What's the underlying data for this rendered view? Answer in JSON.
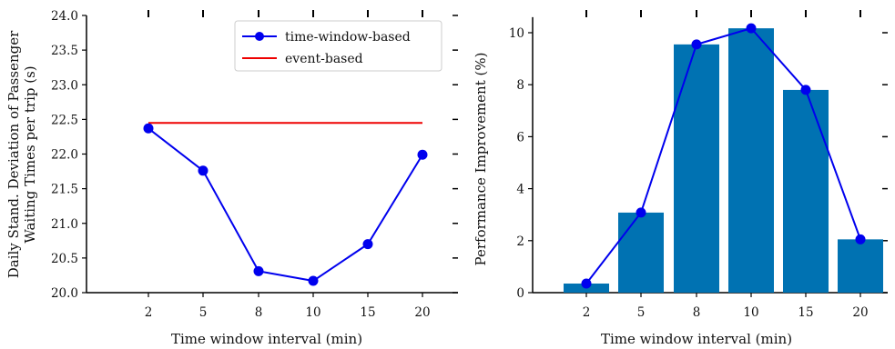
{
  "chart_data": [
    {
      "type": "line",
      "title": "",
      "xlabel": "Time window interval (min)",
      "ylabel_lines": [
        "Daily Stand. Deviation of Passenger",
        "Waiting Times per trip (s)"
      ],
      "categories": [
        "2",
        "5",
        "8",
        "10",
        "15",
        "20"
      ],
      "ylim": [
        20.0,
        24.0
      ],
      "yticks": [
        "20.0",
        "20.5",
        "21.0",
        "21.5",
        "22.0",
        "22.5",
        "23.0",
        "23.5",
        "24.0"
      ],
      "legend_position": "top-right",
      "series": [
        {
          "name": "time-window-based",
          "color": "#0000ee",
          "marker": "circle",
          "values": [
            22.37,
            21.76,
            20.31,
            20.17,
            20.7,
            21.99
          ]
        },
        {
          "name": "event-based",
          "color": "#ee0000",
          "marker": "none",
          "values": [
            22.45,
            22.45,
            22.45,
            22.45,
            22.45,
            22.45
          ]
        }
      ]
    },
    {
      "type": "bar",
      "title": "",
      "xlabel": "Time window interval (min)",
      "ylabel": "Performance Improvement (%)",
      "categories": [
        "2",
        "5",
        "8",
        "10",
        "15",
        "20"
      ],
      "ylim": [
        0,
        10.6
      ],
      "yticks": [
        "0",
        "2",
        "4",
        "6",
        "8",
        "10"
      ],
      "bar_color": "#0072b2",
      "line_color": "#0000ee",
      "values": [
        0.35,
        3.08,
        9.55,
        10.17,
        7.8,
        2.05
      ]
    }
  ]
}
